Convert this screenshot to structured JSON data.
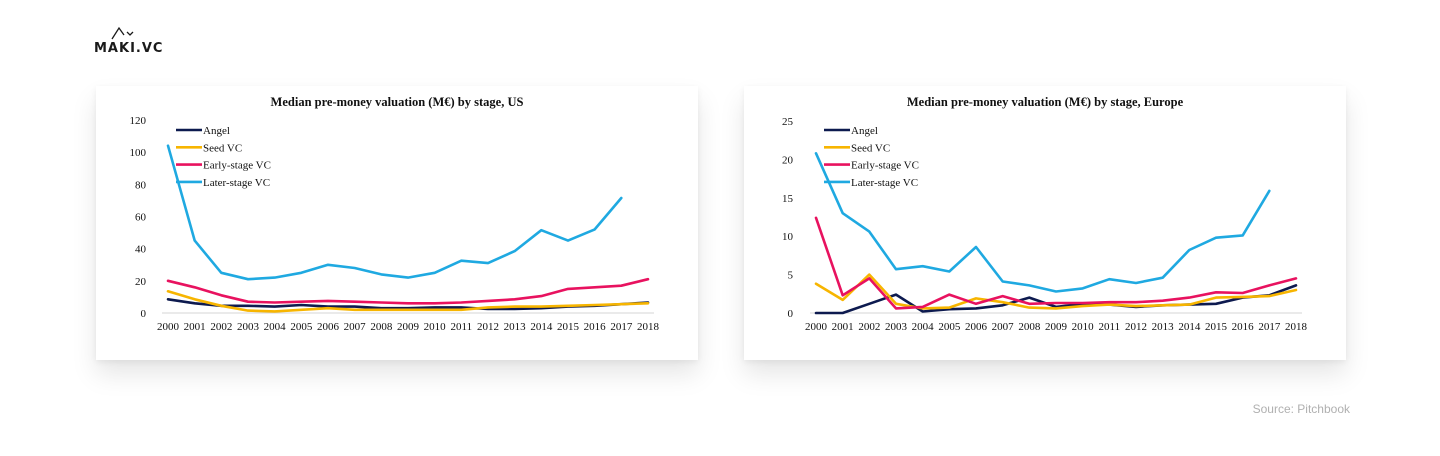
{
  "brand": {
    "name": "MAKI.VC"
  },
  "source": "Source: Pitchbook",
  "chart_data": [
    {
      "type": "line",
      "title": "Median pre-money valuation (M€) by stage, US",
      "xlabel": "",
      "ylabel": "",
      "categories": [
        "2000",
        "2001",
        "2002",
        "2003",
        "2004",
        "2005",
        "2006",
        "2007",
        "2008",
        "2009",
        "2010",
        "2011",
        "2012",
        "2013",
        "2014",
        "2015",
        "2016",
        "2017",
        "2018"
      ],
      "ylim": [
        0,
        120
      ],
      "yticks": [
        0,
        20,
        40,
        60,
        80,
        100,
        120
      ],
      "grid": false,
      "legend": "top-left",
      "series": [
        {
          "name": "Angel",
          "color": "#0d1a4f",
          "values": [
            8.5,
            6,
            4.5,
            4.5,
            4,
            5,
            4,
            4,
            3,
            3,
            3.5,
            3.5,
            2.5,
            2.5,
            3,
            4,
            4.5,
            5.5,
            6.5
          ]
        },
        {
          "name": "Seed VC",
          "color": "#f7b500",
          "values": [
            13.5,
            8.5,
            4.5,
            1.5,
            1,
            2,
            3,
            2,
            2,
            2,
            2,
            2,
            3.5,
            4,
            4,
            4.5,
            5,
            5.5,
            6
          ]
        },
        {
          "name": "Early-stage VC",
          "color": "#e8125f",
          "values": [
            20,
            16,
            11,
            7,
            6.5,
            7,
            7.5,
            7,
            6.5,
            6,
            6,
            6.5,
            7.5,
            8.5,
            10.5,
            15,
            16,
            17,
            21
          ]
        },
        {
          "name": "Later-stage VC",
          "color": "#1fa9e1",
          "values": [
            104,
            45,
            25,
            21,
            22,
            25,
            30,
            28,
            24,
            22,
            25,
            32.5,
            31,
            38.5,
            51.5,
            45,
            52,
            71.5,
            null
          ]
        }
      ]
    },
    {
      "type": "line",
      "title": "Median pre-money valuation (M€) by stage, Europe",
      "xlabel": "",
      "ylabel": "",
      "categories": [
        "2000",
        "2001",
        "2002",
        "2003",
        "2004",
        "2005",
        "2006",
        "2007",
        "2008",
        "2009",
        "2010",
        "2011",
        "2012",
        "2013",
        "2014",
        "2015",
        "2016",
        "2017",
        "2018"
      ],
      "ylim": [
        0,
        25
      ],
      "yticks": [
        0,
        5,
        10,
        15,
        20,
        25
      ],
      "grid": false,
      "legend": "top-left",
      "series": [
        {
          "name": "Angel",
          "color": "#0d1a4f",
          "values": [
            0,
            0,
            1.2,
            2.4,
            0.2,
            0.5,
            0.6,
            1,
            2,
            0.8,
            1.2,
            1.1,
            0.8,
            1,
            1.1,
            1.2,
            2,
            2.3,
            3.6
          ]
        },
        {
          "name": "Seed VC",
          "color": "#f7b500",
          "values": [
            3.8,
            1.7,
            5,
            1.2,
            0.6,
            0.7,
            1.9,
            1.4,
            0.7,
            0.6,
            0.9,
            1.1,
            0.9,
            1,
            1.1,
            2,
            2.1,
            2.2,
            3
          ]
        },
        {
          "name": "Early-stage VC",
          "color": "#e8125f",
          "values": [
            12.4,
            2.3,
            4.5,
            0.6,
            0.8,
            2.4,
            1.2,
            2.2,
            1.2,
            1.3,
            1.3,
            1.4,
            1.4,
            1.6,
            2,
            2.7,
            2.6,
            3.6,
            4.5
          ]
        },
        {
          "name": "Later-stage VC",
          "color": "#1fa9e1",
          "values": [
            20.8,
            13,
            10.6,
            5.7,
            6.1,
            5.4,
            8.6,
            4.1,
            3.6,
            2.8,
            3.2,
            4.4,
            3.9,
            4.6,
            8.2,
            9.8,
            10.1,
            15.9,
            null
          ]
        }
      ]
    }
  ]
}
